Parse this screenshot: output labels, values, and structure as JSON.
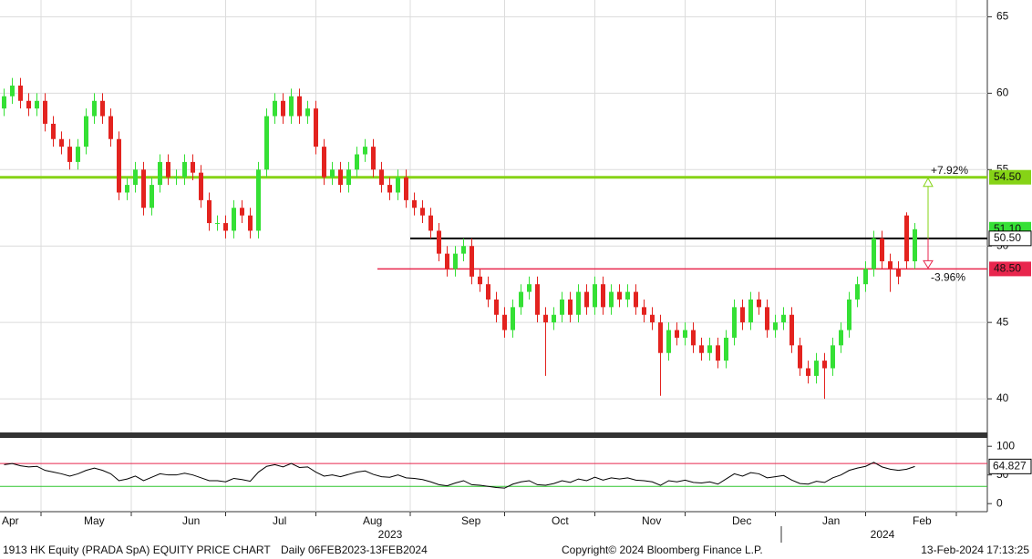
{
  "chart_data": {
    "type": "candlestick",
    "title": "1913 HK Equity (PRADA SpA) EQUITY PRICE CHART",
    "subtitle": "Daily 06FEB2023-13FEB2024",
    "copyright": "Copyright© 2024 Bloomberg Finance L.P.",
    "timestamp": "13-Feb-2024 17:13:25",
    "years": [
      "2023",
      "2024"
    ],
    "categories": [
      "Apr",
      null,
      null,
      null,
      null,
      null,
      null,
      null,
      null,
      null,
      "May",
      null,
      null,
      null,
      null,
      null,
      null,
      null,
      null,
      null,
      null,
      null,
      "Jun",
      null,
      null,
      null,
      null,
      null,
      null,
      null,
      null,
      null,
      null,
      "Jul",
      null,
      null,
      null,
      null,
      null,
      null,
      null,
      null,
      null,
      null,
      "Aug",
      null,
      null,
      null,
      null,
      null,
      null,
      null,
      null,
      null,
      null,
      null,
      "Sep",
      null,
      null,
      null,
      null,
      null,
      null,
      null,
      null,
      null,
      null,
      "Oct",
      null,
      null,
      null,
      null,
      null,
      null,
      null,
      null,
      null,
      null,
      "Nov",
      null,
      null,
      null,
      null,
      null,
      null,
      null,
      null,
      null,
      null,
      "Dec",
      null,
      null,
      null,
      null,
      null,
      null,
      null,
      null,
      null,
      null,
      "Jan",
      null,
      null,
      null,
      null,
      null,
      null,
      null,
      null,
      null,
      null,
      "Feb"
    ],
    "open": [
      59.0,
      59.8,
      60.5,
      59.5,
      59.0,
      59.5,
      58.0,
      57.0,
      56.5,
      55.5,
      56.5,
      58.5,
      59.5,
      58.5,
      57.0,
      53.5,
      54.0,
      55.0,
      52.5,
      54.0,
      55.5,
      54.5,
      54.5,
      55.5,
      54.8,
      53.0,
      51.5,
      51.5,
      51.0,
      52.5,
      52.0,
      51.0,
      55.0,
      58.5,
      59.5,
      58.5,
      59.8,
      58.5,
      59.0,
      56.5,
      54.5,
      55.0,
      54.0,
      55.0,
      56.0,
      56.5,
      55.0,
      54.0,
      53.5,
      54.5,
      53.0,
      52.5,
      52.0,
      51.0,
      49.5,
      48.5,
      49.5,
      50.0,
      48.0,
      47.5,
      46.5,
      45.5,
      44.5,
      46.0,
      47.0,
      47.5,
      45.5,
      45.0,
      45.5,
      46.5,
      45.5,
      47.0,
      46.0,
      47.5,
      46.0,
      47.0,
      46.5,
      47.0,
      46.0,
      45.5,
      45.0,
      43.0,
      44.5,
      44.0,
      44.5,
      43.5,
      43.0,
      43.5,
      42.5,
      44.0,
      46.0,
      45.0,
      46.5,
      46.0,
      44.5,
      45.0,
      45.5,
      43.5,
      42.0,
      41.5,
      42.5,
      42.0,
      43.5,
      44.5,
      46.5,
      47.5,
      48.5,
      50.5,
      49.0,
      48.5,
      52.0,
      49.0
    ],
    "high": [
      60.3,
      61.0,
      61.0,
      60.0,
      60.0,
      60.0,
      58.5,
      57.5,
      57.0,
      57.0,
      59.0,
      60.0,
      60.0,
      59.0,
      57.5,
      54.5,
      55.5,
      55.5,
      54.5,
      56.0,
      56.0,
      55.0,
      56.0,
      56.0,
      55.3,
      53.5,
      52.0,
      52.0,
      53.0,
      53.0,
      52.5,
      55.5,
      59.0,
      60.0,
      60.0,
      60.3,
      60.3,
      59.5,
      59.5,
      57.0,
      55.5,
      55.5,
      55.5,
      56.5,
      57.0,
      57.0,
      55.5,
      54.5,
      55.0,
      55.0,
      53.5,
      53.0,
      52.5,
      51.5,
      50.0,
      50.0,
      50.5,
      50.5,
      48.5,
      48.0,
      47.0,
      46.0,
      46.5,
      47.5,
      48.0,
      48.0,
      46.0,
      46.0,
      47.0,
      47.0,
      47.5,
      47.5,
      48.0,
      48.0,
      47.5,
      47.5,
      47.5,
      47.5,
      46.5,
      46.0,
      45.5,
      45.0,
      45.0,
      45.0,
      45.0,
      44.0,
      44.0,
      44.0,
      44.5,
      46.5,
      46.5,
      47.0,
      47.0,
      46.5,
      45.5,
      46.0,
      46.0,
      44.0,
      42.5,
      43.0,
      43.0,
      44.0,
      45.0,
      47.0,
      48.0,
      49.0,
      51.0,
      51.0,
      49.5,
      49.0,
      52.2,
      51.5
    ],
    "low": [
      58.5,
      59.3,
      59.0,
      58.5,
      58.5,
      57.5,
      56.5,
      56.0,
      55.0,
      55.0,
      56.0,
      58.0,
      58.0,
      56.5,
      53.0,
      53.0,
      53.5,
      52.0,
      52.0,
      53.5,
      54.0,
      54.0,
      54.0,
      54.3,
      52.5,
      51.0,
      51.0,
      50.5,
      50.5,
      51.5,
      50.5,
      50.5,
      54.5,
      58.0,
      58.0,
      58.0,
      58.0,
      58.0,
      56.0,
      54.0,
      54.0,
      53.5,
      53.5,
      54.5,
      55.5,
      54.5,
      53.5,
      53.0,
      53.0,
      52.5,
      52.0,
      51.5,
      50.5,
      49.0,
      48.0,
      48.0,
      49.0,
      47.5,
      47.0,
      46.0,
      45.0,
      44.0,
      44.0,
      45.5,
      46.5,
      45.0,
      41.5,
      44.5,
      45.0,
      45.0,
      45.0,
      45.5,
      45.5,
      45.5,
      45.5,
      46.0,
      46.0,
      45.5,
      45.0,
      44.5,
      40.2,
      42.5,
      43.5,
      43.5,
      43.0,
      42.5,
      42.5,
      42.0,
      42.0,
      43.5,
      44.5,
      44.5,
      45.5,
      44.0,
      44.0,
      44.5,
      43.0,
      41.5,
      41.0,
      41.0,
      40.0,
      41.5,
      43.0,
      44.0,
      46.0,
      47.0,
      48.0,
      48.5,
      47.0,
      47.5,
      48.5,
      48.5
    ],
    "close": [
      59.8,
      60.5,
      59.5,
      59.0,
      59.5,
      58.0,
      57.0,
      56.5,
      55.5,
      56.5,
      58.5,
      59.5,
      58.5,
      57.0,
      53.5,
      54.0,
      55.0,
      52.5,
      54.0,
      55.5,
      54.5,
      54.5,
      55.5,
      54.8,
      53.0,
      51.5,
      51.5,
      51.0,
      52.5,
      52.0,
      51.0,
      55.0,
      58.5,
      59.5,
      58.5,
      59.8,
      58.5,
      59.0,
      56.5,
      54.5,
      55.0,
      54.0,
      55.0,
      56.0,
      56.5,
      55.0,
      54.0,
      53.5,
      54.5,
      53.0,
      52.5,
      52.0,
      51.0,
      49.5,
      48.5,
      49.5,
      50.0,
      48.0,
      47.5,
      46.5,
      45.5,
      44.5,
      46.0,
      47.0,
      47.5,
      45.5,
      45.0,
      45.5,
      46.5,
      45.5,
      47.0,
      46.0,
      47.5,
      46.0,
      47.0,
      46.5,
      47.0,
      46.0,
      45.5,
      45.0,
      43.0,
      44.5,
      44.0,
      44.5,
      43.5,
      43.0,
      43.5,
      42.5,
      44.0,
      46.0,
      45.0,
      46.5,
      46.0,
      44.5,
      45.0,
      45.5,
      43.5,
      42.0,
      41.5,
      42.5,
      42.0,
      43.5,
      44.5,
      46.5,
      47.5,
      48.5,
      50.5,
      49.0,
      48.5,
      48.0,
      49.0,
      51.1
    ],
    "up_color": "#35e035",
    "down_color": "#e3231f",
    "ylim": [
      37.8,
      66.1
    ],
    "yticks": [
      40,
      45,
      50,
      55,
      60,
      65
    ],
    "grid": true,
    "last_price": {
      "value": 51.1,
      "label": "51.10",
      "color": "#35e035"
    },
    "levels": [
      {
        "value": 54.5,
        "label": "54.50",
        "color": "#86d316"
      },
      {
        "value": 50.5,
        "label": "50.50",
        "color": "#000000"
      },
      {
        "value": 48.5,
        "label": "48.50",
        "color": "#e8264d"
      }
    ],
    "change_labels": [
      "+7.92%",
      "-3.96%"
    ],
    "rsi": {
      "values": [
        68,
        70,
        66,
        64,
        65,
        58,
        55,
        52,
        48,
        52,
        58,
        62,
        58,
        52,
        40,
        43,
        48,
        40,
        46,
        52,
        50,
        50,
        53,
        50,
        45,
        40,
        40,
        38,
        44,
        42,
        39,
        55,
        65,
        68,
        64,
        70,
        63,
        64,
        55,
        48,
        50,
        47,
        51,
        55,
        57,
        51,
        47,
        46,
        50,
        45,
        44,
        42,
        38,
        33,
        31,
        36,
        40,
        33,
        32,
        30,
        28,
        27,
        34,
        38,
        40,
        33,
        32,
        35,
        40,
        37,
        43,
        40,
        46,
        41,
        45,
        43,
        45,
        41,
        40,
        38,
        32,
        40,
        38,
        41,
        37,
        36,
        38,
        34,
        43,
        52,
        48,
        54,
        52,
        45,
        47,
        49,
        41,
        35,
        34,
        39,
        37,
        45,
        50,
        58,
        62,
        65,
        72,
        64,
        60,
        58,
        60,
        64.827
      ],
      "color": "#000000",
      "ylim": [
        -14,
        113
      ],
      "yticks": [
        0,
        50,
        100
      ],
      "levels": [
        70,
        30
      ],
      "level_colors": [
        "#e8264d",
        "#2fc52f"
      ]
    }
  }
}
